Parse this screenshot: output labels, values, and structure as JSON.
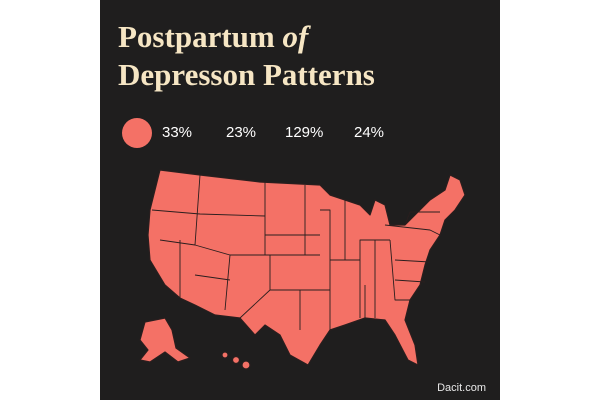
{
  "title": {
    "line1": "Postpartum",
    "emphasis": "of",
    "line2": "Depresson Patterns"
  },
  "stats": [
    "33%",
    "23%",
    "129%",
    "24%"
  ],
  "footer": "Dacit.com"
}
